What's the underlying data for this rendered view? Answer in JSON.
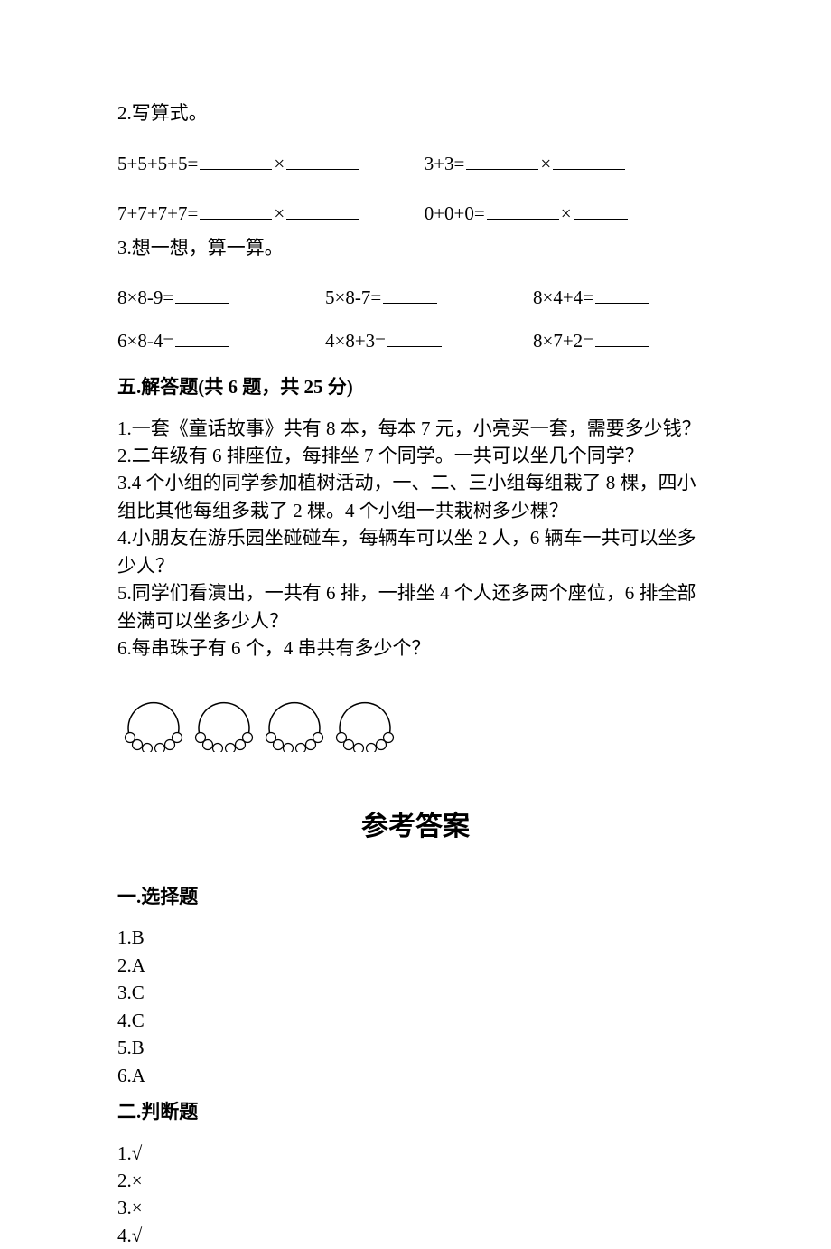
{
  "q2": {
    "label": "2.写算式。"
  },
  "eqRowA": {
    "left": {
      "lhs": "5+5+5+5=",
      "op": "×"
    },
    "right": {
      "lhs": "3+3=",
      "op": "×"
    }
  },
  "eqRowB": {
    "left": {
      "lhs": "7+7+7+7=",
      "op": "×"
    },
    "right": {
      "lhs": "0+0+0=",
      "op": "×"
    }
  },
  "q3": {
    "label": "3.想一想，算一算。"
  },
  "calcRows": [
    {
      "a": "8×8-9=",
      "b": "5×8-7=",
      "c": "8×4+4="
    },
    {
      "a": "6×8-4=",
      "b": "4×8+3=",
      "c": "8×7+2="
    }
  ],
  "section5": {
    "title": "五.解答题(共 6 题，共 25 分)"
  },
  "wordProblems": [
    "1.一套《童话故事》共有 8 本，每本 7 元，小亮买一套，需要多少钱？",
    "2.二年级有 6 排座位，每排坐 7 个同学。一共可以坐几个同学？",
    "3.4 个小组的同学参加植树活动，一、二、三小组每组栽了 8 棵，四小组比其他每组多栽了 2 棵。4 个小组一共栽树多少棵？",
    "4.小朋友在游乐园坐碰碰车，每辆车可以坐 2 人，6 辆车一共可以坐多少人？",
    "5.同学们看演出，一共有 6 排，一排坐 4 个人还多两个座位，6 排全部坐满可以坐多少人？",
    "6.每串珠子有 6 个，4 串共有多少个？"
  ],
  "beads": {
    "count": 4,
    "stroke": "#000000",
    "fill": "#ffffff"
  },
  "answerTitle": "参考答案",
  "ansSec1": {
    "title": "一.选择题"
  },
  "choiceAnswers": [
    "1.B",
    "2.A",
    "3.C",
    "4.C",
    "5.B",
    "6.A"
  ],
  "ansSec2": {
    "title": "二.判断题"
  },
  "judgeAnswers": [
    "1.√",
    "2.×",
    "3.×",
    "4.√"
  ]
}
